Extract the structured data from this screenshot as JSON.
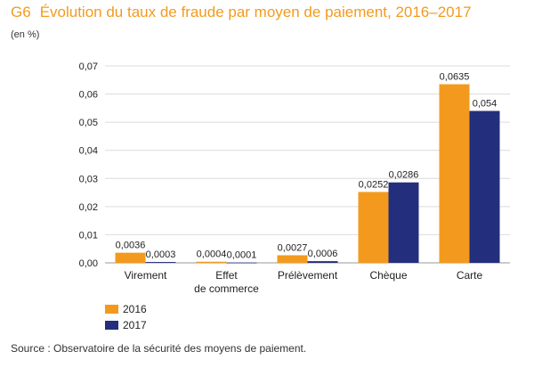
{
  "header": {
    "code": "G6",
    "title": "Évolution du taux de fraude par moyen de paiement, 2016–2017",
    "unit": "(en %)"
  },
  "source": "Source : Observatoire de la sécurité des moyens de paiement.",
  "colors": {
    "series_2016": "#f39a1e",
    "series_2017": "#232f7d"
  },
  "chart_data": {
    "type": "bar",
    "title": "Évolution du taux de fraude par moyen de paiement, 2016–2017",
    "xlabel": "",
    "ylabel": "(en %)",
    "categories": [
      [
        "Virement"
      ],
      [
        "Effet",
        "de commerce"
      ],
      [
        "Prélèvement"
      ],
      [
        "Chèque"
      ],
      [
        "Carte"
      ]
    ],
    "series": [
      {
        "name": "2016",
        "values": [
          0.0036,
          0.0004,
          0.0027,
          0.0252,
          0.0635
        ],
        "labels": [
          "0,0036",
          "0,0004",
          "0,0027",
          "0,0252",
          "0,0635"
        ]
      },
      {
        "name": "2017",
        "values": [
          0.0003,
          0.0001,
          0.0006,
          0.0286,
          0.054
        ],
        "labels": [
          "0,0003",
          "0,0001",
          "0,0006",
          "0,0286",
          "0,054"
        ]
      }
    ],
    "ylim": [
      0,
      0.07
    ],
    "yticks": [
      0,
      0.01,
      0.02,
      0.03,
      0.04,
      0.05,
      0.06,
      0.07
    ],
    "ytick_labels": [
      "0,00",
      "0,01",
      "0,02",
      "0,03",
      "0,04",
      "0,05",
      "0,06",
      "0,07"
    ],
    "grid": true,
    "legend_position": "bottom-left"
  }
}
